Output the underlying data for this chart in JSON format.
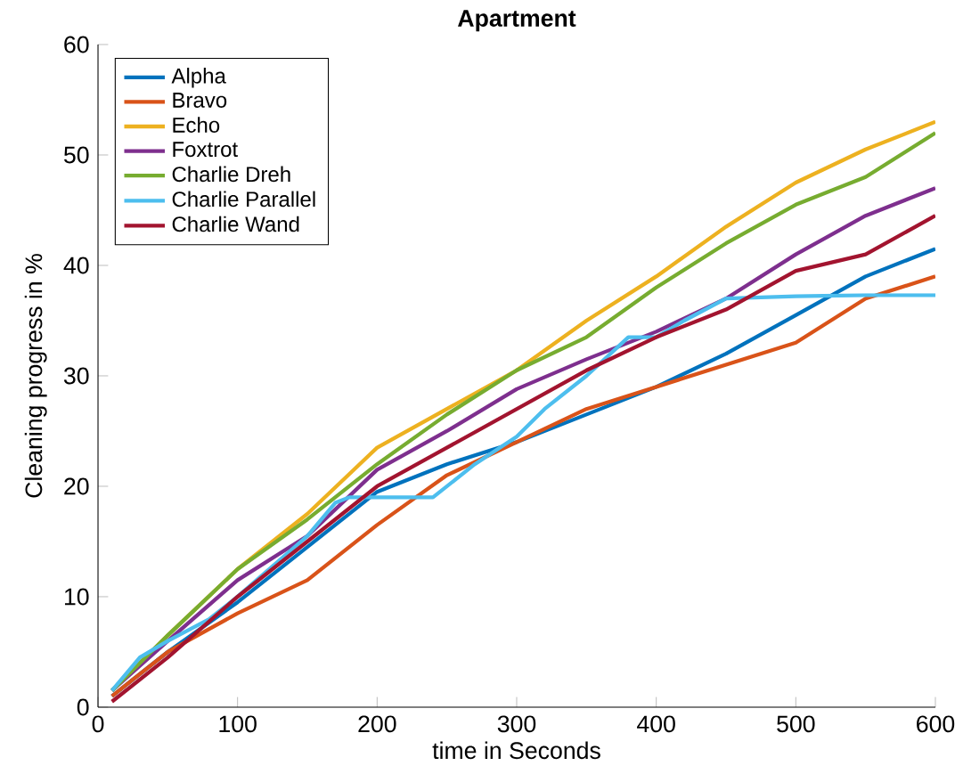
{
  "chart_data": {
    "type": "line",
    "title": "Apartment",
    "xlabel": "time in Seconds",
    "ylabel": "Cleaning progress in %",
    "xlim": [
      0,
      600
    ],
    "ylim": [
      0,
      60
    ],
    "xticks": [
      0,
      100,
      200,
      300,
      400,
      500,
      600
    ],
    "yticks": [
      0,
      10,
      20,
      30,
      40,
      50,
      60
    ],
    "grid": false,
    "legend": "top left",
    "marker": "none",
    "line_style": "solid",
    "series": [
      {
        "name": "Alpha",
        "color": "#0072bd",
        "x": [
          10,
          50,
          100,
          150,
          200,
          250,
          300,
          350,
          400,
          450,
          500,
          550,
          600
        ],
        "values": [
          1,
          5,
          9.5,
          14.5,
          19.5,
          22,
          24,
          26.5,
          29,
          32,
          35.5,
          39,
          41.5
        ]
      },
      {
        "name": "Bravo",
        "color": "#d95319",
        "x": [
          10,
          50,
          100,
          150,
          200,
          250,
          300,
          350,
          400,
          450,
          500,
          550,
          600
        ],
        "values": [
          1,
          5,
          8.5,
          11.5,
          16.5,
          21,
          24,
          27,
          29,
          31,
          33,
          37,
          39
        ]
      },
      {
        "name": "Echo",
        "color": "#edb120",
        "x": [
          10,
          50,
          100,
          150,
          200,
          250,
          300,
          350,
          400,
          450,
          500,
          550,
          600
        ],
        "values": [
          1.5,
          6.5,
          12.5,
          17.5,
          23.5,
          27,
          30.5,
          35,
          39,
          43.5,
          47.5,
          50.5,
          53
        ]
      },
      {
        "name": "Foxtrot",
        "color": "#7e2f8e",
        "x": [
          10,
          50,
          100,
          150,
          200,
          250,
          300,
          350,
          400,
          450,
          500,
          550,
          600
        ],
        "values": [
          1.5,
          6,
          11.5,
          15.5,
          21.5,
          25,
          28.8,
          31.5,
          34,
          37,
          41,
          44.5,
          47
        ]
      },
      {
        "name": "Charlie Dreh",
        "color": "#77ac30",
        "x": [
          10,
          50,
          100,
          150,
          200,
          250,
          300,
          350,
          400,
          450,
          500,
          550,
          600
        ],
        "values": [
          1.5,
          6.5,
          12.5,
          17,
          22,
          26.5,
          30.5,
          33.5,
          38,
          42,
          45.5,
          48,
          52
        ]
      },
      {
        "name": "Charlie Parallel",
        "color": "#4dbeee",
        "x": [
          10,
          30,
          50,
          80,
          100,
          150,
          170,
          180,
          220,
          240,
          270,
          300,
          320,
          350,
          380,
          400,
          420,
          450,
          500,
          550,
          600
        ],
        "values": [
          1.5,
          4.5,
          6,
          8,
          10,
          15.5,
          18.5,
          19,
          19,
          19,
          22,
          24.5,
          27,
          30,
          33.5,
          33.5,
          35,
          37,
          37.2,
          37.3,
          37.3
        ]
      },
      {
        "name": "Charlie Wand",
        "color": "#a2142f",
        "x": [
          10,
          50,
          100,
          150,
          200,
          250,
          300,
          350,
          400,
          450,
          500,
          550,
          600
        ],
        "values": [
          0.5,
          4.5,
          10,
          15,
          20,
          23.5,
          27,
          30.5,
          33.5,
          36,
          39.5,
          41,
          44.5
        ]
      }
    ]
  }
}
